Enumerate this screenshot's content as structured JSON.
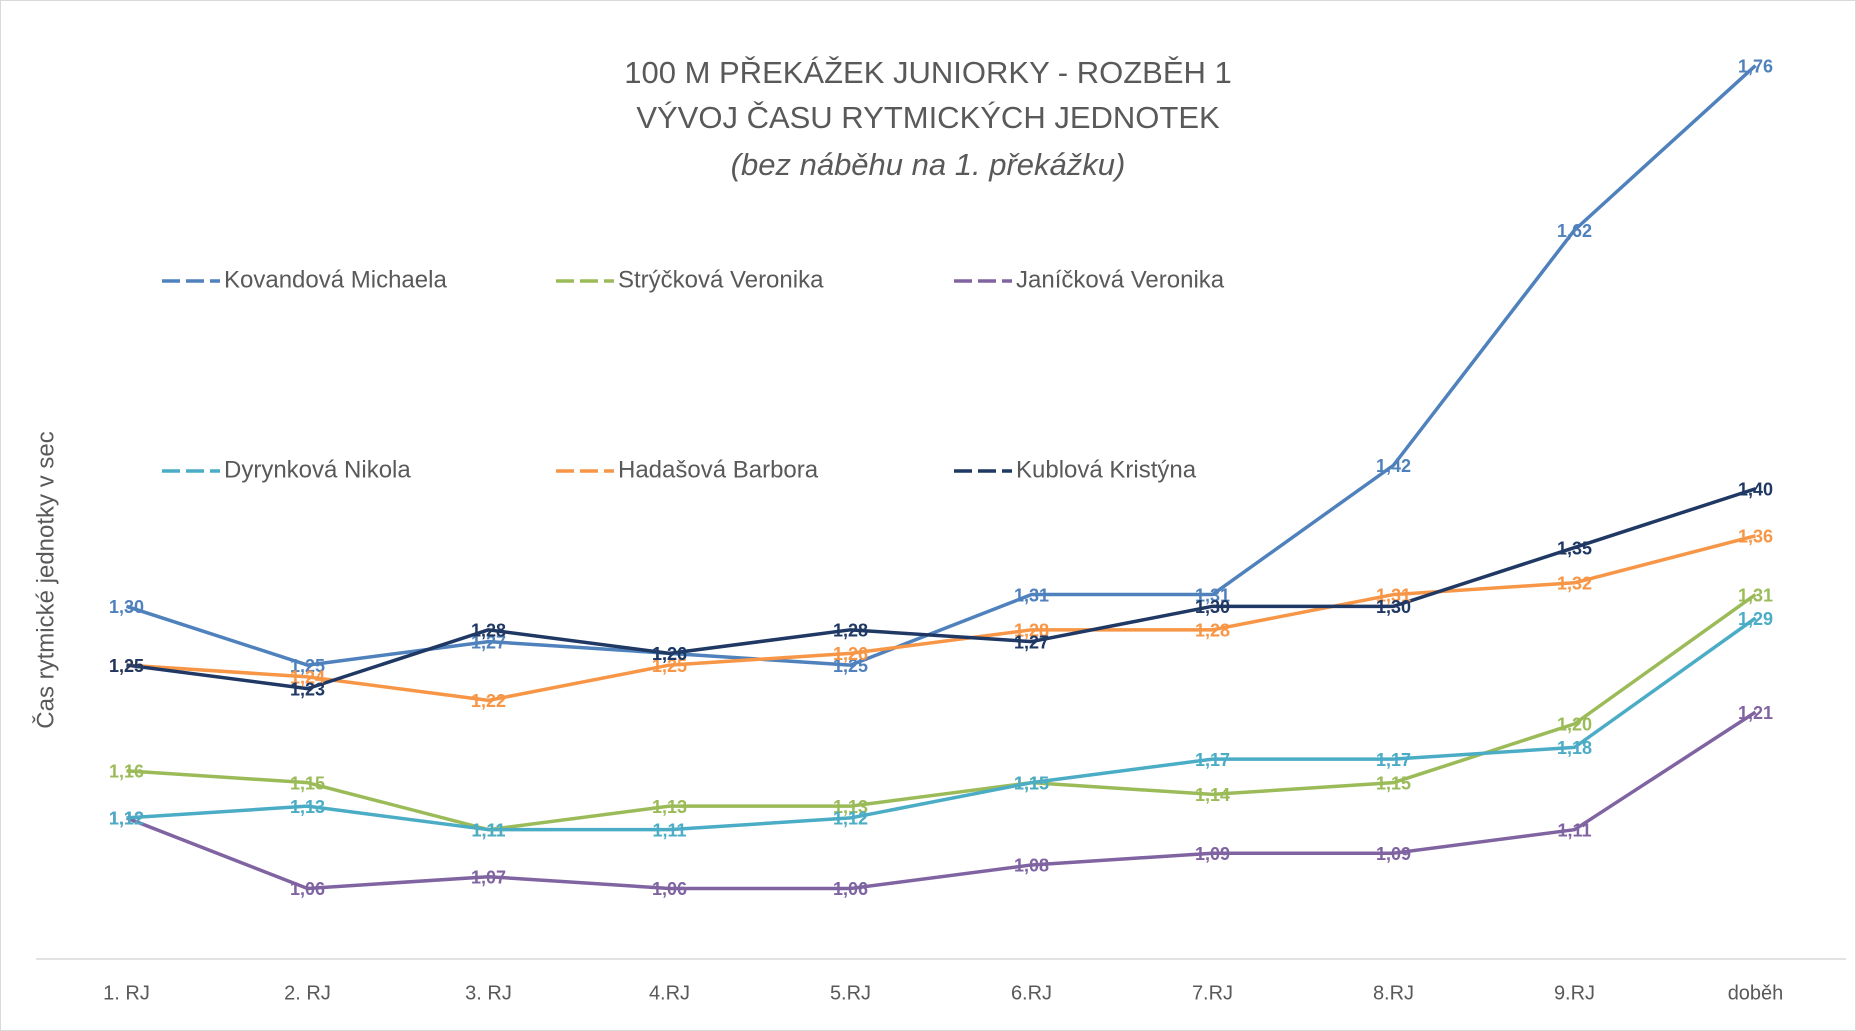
{
  "chart_data": {
    "type": "line",
    "title": "100 M PŘEKÁŽEK JUNIORKY - ROZBĚH 1",
    "subtitle": "VÝVOJ ČASU RYTMICKÝCH JEDNOTEK",
    "note": "(bez náběhu na 1. překážku)",
    "y_label": "Čas rytmické jednotky v sec",
    "categories": [
      "1. RJ",
      "2. RJ",
      "3. RJ",
      "4.RJ",
      "5.RJ",
      "6.RJ",
      "7.RJ",
      "8.RJ",
      "9.RJ",
      "doběh"
    ],
    "ylim": [
      1.0,
      1.8
    ],
    "legend": "top",
    "series": [
      {
        "name": "Kovandová Michaela",
        "color": "#4f81bd",
        "values": [
          1.3,
          1.25,
          1.27,
          1.26,
          1.25,
          1.31,
          1.31,
          1.42,
          1.62,
          1.76
        ],
        "value_labels": [
          "1,30",
          "1,25",
          "1,27",
          "1,26",
          "1,25",
          "1,31",
          "1,31",
          "1,42",
          "1,62",
          "1,76"
        ]
      },
      {
        "name": "Strýčková Veronika",
        "color": "#9bbb59",
        "values": [
          1.16,
          1.15,
          1.11,
          1.13,
          1.13,
          1.15,
          1.14,
          1.15,
          1.2,
          1.31
        ],
        "value_labels": [
          "1,16",
          "1,15",
          "1,11",
          "1,13",
          "1,13",
          "1,15",
          "1,14",
          "1,15",
          "1,20",
          "1,31"
        ]
      },
      {
        "name": "Janíčková Veronika",
        "color": "#8064a2",
        "values": [
          1.12,
          1.06,
          1.07,
          1.06,
          1.06,
          1.08,
          1.09,
          1.09,
          1.11,
          1.21
        ],
        "value_labels": [
          "1,12",
          "1,06",
          "1,07",
          "1,06",
          "1,06",
          "1,08",
          "1,09",
          "1,09",
          "1,11",
          "1,21"
        ]
      },
      {
        "name": "Dyrynková Nikola",
        "color": "#4bacc6",
        "values": [
          1.12,
          1.13,
          1.11,
          1.11,
          1.12,
          1.15,
          1.17,
          1.17,
          1.18,
          1.29
        ],
        "value_labels": [
          "1,12",
          "1,13",
          "1,11",
          "1,11",
          "1,12",
          "1,15",
          "1,17",
          "1,17",
          "1,18",
          "1,29"
        ]
      },
      {
        "name": "Hadašová Barbora",
        "color": "#f79646",
        "values": [
          1.25,
          1.24,
          1.22,
          1.25,
          1.26,
          1.28,
          1.28,
          1.31,
          1.32,
          1.36
        ],
        "value_labels": [
          "1,25",
          "1,24",
          "1,22",
          "1,25",
          "1,26",
          "1,28",
          "1,28",
          "1,31",
          "1,32",
          "1,36"
        ]
      },
      {
        "name": "Kublová Kristýna",
        "color": "#1f3864",
        "values": [
          1.25,
          1.23,
          1.28,
          1.26,
          1.28,
          1.27,
          1.3,
          1.3,
          1.35,
          1.4
        ],
        "value_labels": [
          "1,25",
          "1,23",
          "1,28",
          "1,26",
          "1,28",
          "1,27",
          "1,30",
          "1,30",
          "1,35",
          "1,40"
        ]
      }
    ]
  }
}
